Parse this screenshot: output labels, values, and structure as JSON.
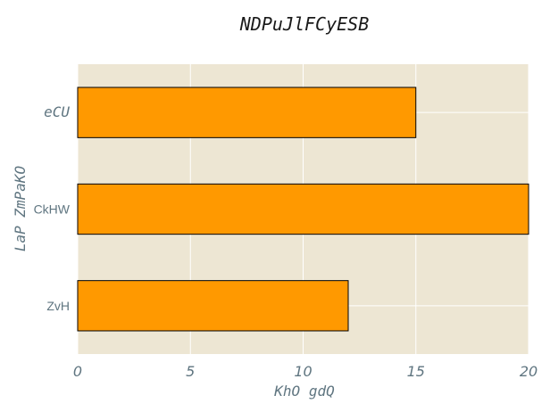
{
  "chart_data": {
    "type": "bar",
    "orientation": "horizontal",
    "title": "NDPuJlFCyESB",
    "xlabel": "KhO gdQ",
    "ylabel": "LaP ZmPaKO",
    "categories": [
      "eCU",
      "CkHW",
      "ZvH"
    ],
    "values": [
      15,
      20,
      12
    ],
    "xlim": [
      0,
      20
    ],
    "xticks": [
      "0",
      "5",
      "10",
      "15",
      "20"
    ],
    "grid": true,
    "legend": "none",
    "colors": {
      "bar_fill": "#ff9900",
      "bar_edge": "#000000",
      "plot_background": "#ede6d3",
      "grid": "#ffffff",
      "tick_text": "#5f7580"
    }
  }
}
